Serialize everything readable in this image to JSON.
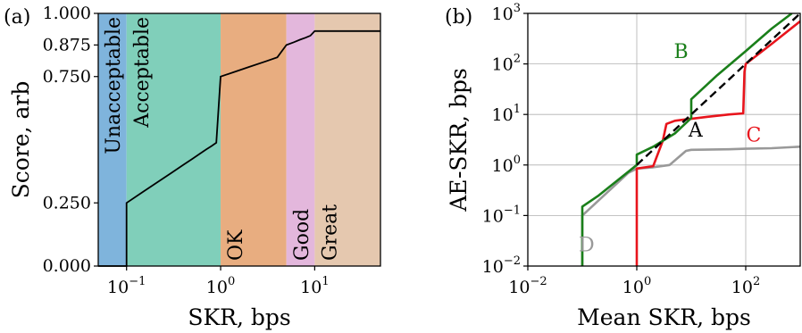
{
  "chart_data": [
    {
      "panel_label": "(a)",
      "type": "area",
      "xlabel": "SKR, bps",
      "ylabel": "Score, arb",
      "xscale": "log",
      "xlim": [
        0.05,
        50
      ],
      "ylim": [
        0,
        1
      ],
      "x_ticks": [
        {
          "base": "10",
          "exp": "−1",
          "value": 0.1
        },
        {
          "base": "10",
          "exp": "0",
          "value": 1
        },
        {
          "base": "10",
          "exp": "1",
          "value": 10
        }
      ],
      "y_ticks": [
        {
          "label": "0.000",
          "value": 0
        },
        {
          "label": "0.250",
          "value": 0.25
        },
        {
          "label": "0.750",
          "value": 0.75
        },
        {
          "label": "0.875",
          "value": 0.875
        },
        {
          "label": "1.000",
          "value": 1.0
        }
      ],
      "zones": [
        {
          "label": "Unacceptable",
          "x0": 0.05,
          "x1": 0.1,
          "color": "#7fb4dc",
          "label_pos": "top"
        },
        {
          "label": "Acceptable",
          "x0": 0.1,
          "x1": 1,
          "color": "#80cfba",
          "label_pos": "top"
        },
        {
          "label": "OK",
          "x0": 1,
          "x1": 5,
          "color": "#e8ad80",
          "label_pos": "bottom"
        },
        {
          "label": "Good",
          "x0": 5,
          "x1": 10,
          "color": "#e3b7dc",
          "label_pos": "bottom"
        },
        {
          "label": "Great",
          "x0": 10,
          "x1": 50,
          "color": "#e5c8af",
          "label_pos": "bottom"
        }
      ],
      "series": [
        {
          "color": "#000000",
          "x": [
            0.05,
            0.1,
            0.1,
            0.15,
            0.2,
            0.3,
            0.4,
            0.5,
            0.6,
            0.7,
            0.8,
            0.9,
            1.0,
            1.5,
            2,
            3,
            4,
            5,
            6,
            7,
            8,
            9,
            10,
            15,
            20,
            30,
            50
          ],
          "y": [
            0,
            0,
            0.25,
            0.294,
            0.325,
            0.369,
            0.4,
            0.424,
            0.444,
            0.461,
            0.475,
            0.488,
            0.75,
            0.772,
            0.788,
            0.81,
            0.826,
            0.875,
            0.886,
            0.896,
            0.904,
            0.912,
            0.93,
            0.93,
            0.93,
            0.93,
            0.93
          ]
        }
      ]
    },
    {
      "panel_label": "(b)",
      "type": "line",
      "xlabel": "Mean SKR, bps",
      "ylabel": "AE-SKR, bps",
      "xscale": "log",
      "yscale": "log",
      "xlim": [
        0.01,
        1000
      ],
      "ylim": [
        0.01,
        1000
      ],
      "grid": true,
      "x_ticks": [
        {
          "base": "10",
          "exp": "−2",
          "value": 0.01
        },
        {
          "base": "10",
          "exp": "0",
          "value": 1
        },
        {
          "base": "10",
          "exp": "2",
          "value": 100
        }
      ],
      "y_ticks": [
        {
          "base": "10",
          "exp": "−2",
          "value": 0.01
        },
        {
          "base": "10",
          "exp": "−1",
          "value": 0.1
        },
        {
          "base": "10",
          "exp": "0",
          "value": 1
        },
        {
          "base": "10",
          "exp": "1",
          "value": 10
        },
        {
          "base": "10",
          "exp": "2",
          "value": 100
        },
        {
          "base": "10",
          "exp": "3",
          "value": 1000
        }
      ],
      "series": [
        {
          "name": "A",
          "color": "#000000",
          "dashed": true,
          "x": [
            1,
            1000
          ],
          "y": [
            1,
            1000
          ],
          "label_at": [
            12,
            5
          ]
        },
        {
          "name": "B",
          "color": "#1a7f1a",
          "x": [
            0.1,
            0.1,
            0.2,
            0.5,
            1,
            1,
            2,
            5,
            10,
            10,
            30,
            100,
            300,
            700
          ],
          "y": [
            0.01,
            0.15,
            0.25,
            0.55,
            1.0,
            1.6,
            2.3,
            4.2,
            8.5,
            20,
            60,
            180,
            500,
            1000
          ],
          "label_at": [
            6.5,
            180
          ]
        },
        {
          "name": "C",
          "color": "#e8141c",
          "x": [
            1,
            1,
            2,
            3,
            3.5,
            5,
            8,
            10,
            20,
            50,
            90,
            95,
            100,
            300,
            1000
          ],
          "y": [
            0.01,
            0.85,
            0.95,
            3,
            6.5,
            7.5,
            8,
            8.2,
            9,
            10,
            10.5,
            70,
            100,
            250,
            700
          ],
          "label_at": [
            140,
            4
          ]
        },
        {
          "name": "D",
          "color": "#999999",
          "x": [
            0.1,
            0.1,
            0.3,
            0.7,
            1,
            2,
            4,
            8,
            10,
            50,
            100,
            300,
            1000
          ],
          "y": [
            0.01,
            0.1,
            0.3,
            0.7,
            0.85,
            0.9,
            1.0,
            1.9,
            2.0,
            2.05,
            2.1,
            2.15,
            2.3
          ],
          "label_at": [
            0.12,
            0.027
          ]
        }
      ]
    }
  ]
}
